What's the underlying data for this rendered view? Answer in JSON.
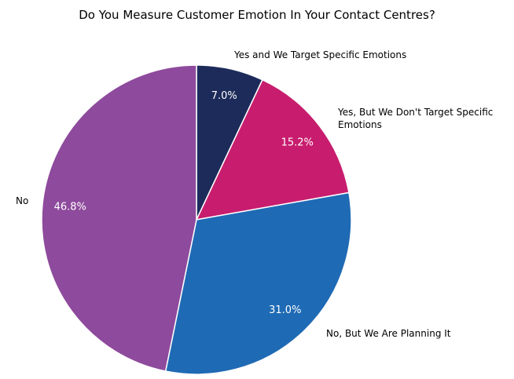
{
  "chart_data": {
    "type": "pie",
    "title": "Do You Measure Customer Emotion In Your Contact Centres?",
    "categories": [
      "Yes and We Target Specific Emotions",
      "Yes, But We Don't Target Specific Emotions",
      "No, But We Are Planning It",
      "No"
    ],
    "values": [
      7.0,
      15.2,
      31.0,
      46.8
    ],
    "value_labels": [
      "7.0%",
      "15.2%",
      "31.0%",
      "46.8%"
    ],
    "colors": [
      "#1c2b5a",
      "#c81d6e",
      "#1f6ab4",
      "#8e4a9c"
    ]
  }
}
